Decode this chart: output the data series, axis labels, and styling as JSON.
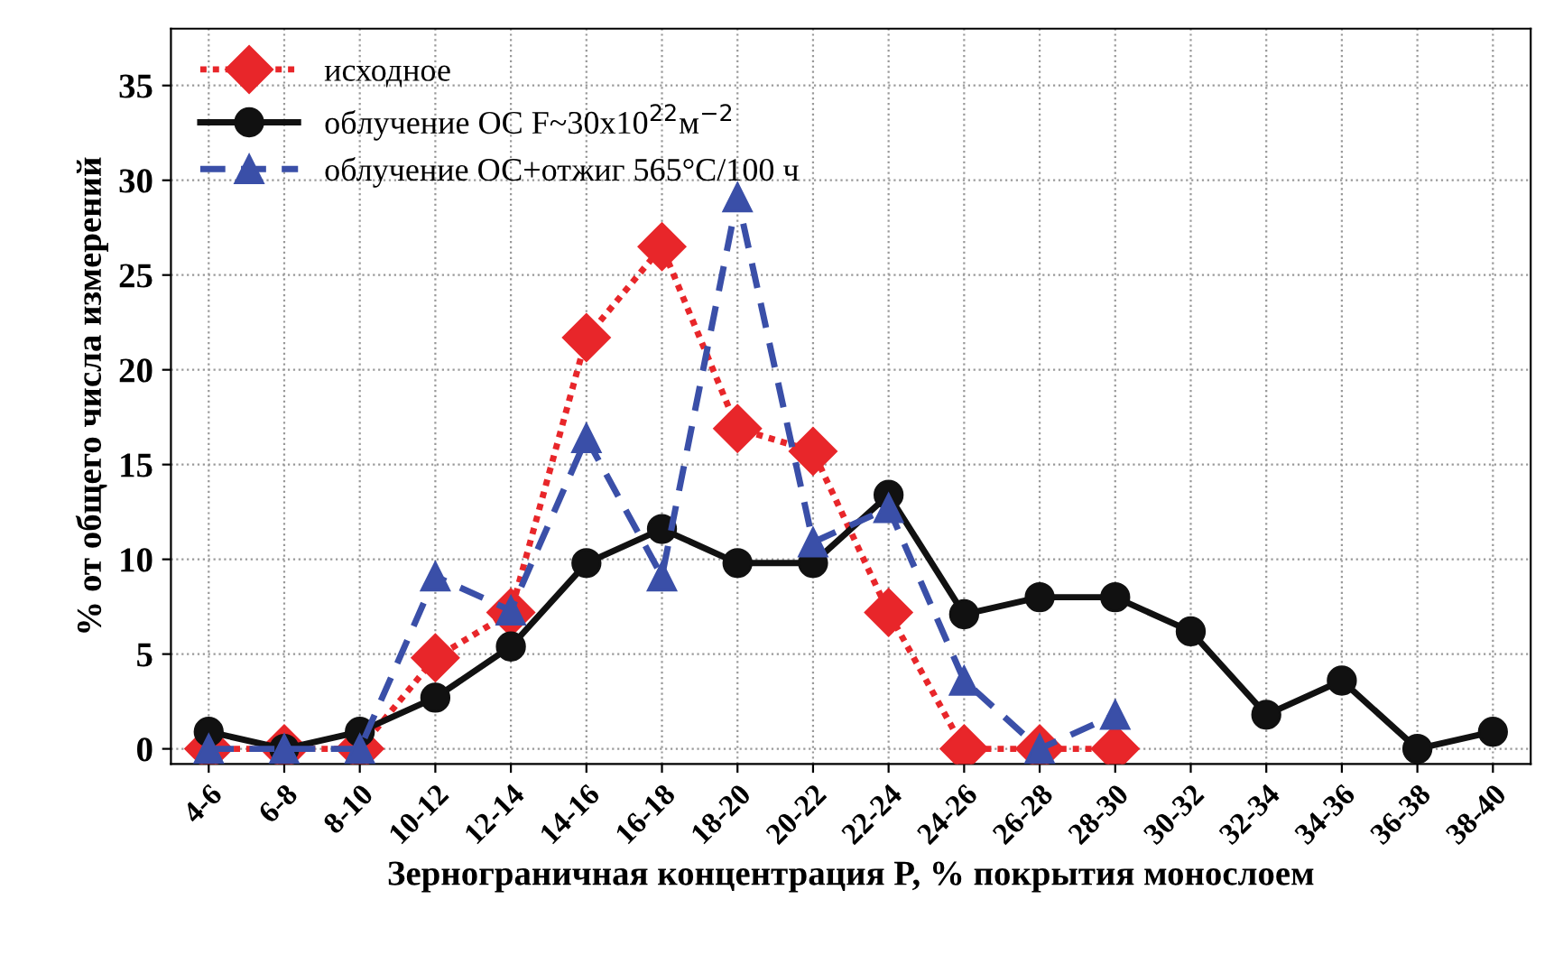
{
  "chart_data": {
    "type": "line",
    "xlabel": "Зернограничная концентрация P, % покрытия монослоем",
    "ylabel": "% от общего числа измерений",
    "categories": [
      "4-6",
      "6-8",
      "8-10",
      "10-12",
      "12-14",
      "14-16",
      "16-18",
      "18-20",
      "20-22",
      "22-24",
      "24-26",
      "26-28",
      "28-30",
      "30-32",
      "32-34",
      "34-36",
      "36-38",
      "38-40"
    ],
    "series": [
      {
        "name": "исходное",
        "color": "#e8262a",
        "marker": "diamond",
        "line_style": "dotted",
        "values": [
          0,
          0,
          0,
          4.8,
          7.2,
          21.7,
          26.5,
          16.9,
          15.7,
          7.2,
          0,
          0,
          0,
          null,
          null,
          null,
          null,
          null
        ]
      },
      {
        "name": "облучение ОС F~30x10$^{22}$м$^{−2}$",
        "color": "#111111",
        "marker": "circle",
        "line_style": "solid",
        "values": [
          0.9,
          0,
          0.9,
          2.7,
          5.4,
          9.8,
          11.6,
          9.8,
          9.8,
          13.4,
          7.1,
          8.0,
          8.0,
          6.2,
          1.8,
          3.6,
          0,
          0.9
        ]
      },
      {
        "name": "облучение ОС+отжиг 565°C/100 ч",
        "color": "#3a4fa8",
        "marker": "triangle",
        "line_style": "dashed",
        "values": [
          0,
          0,
          0,
          9.1,
          7.3,
          16.4,
          9.1,
          29.1,
          10.9,
          12.7,
          3.6,
          0,
          1.8,
          null,
          null,
          null,
          null,
          null
        ]
      }
    ],
    "ylim": [
      -0.8,
      38
    ],
    "yticks": [
      0,
      5,
      10,
      15,
      20,
      25,
      30,
      35
    ],
    "grid": true,
    "legend": "top left"
  }
}
